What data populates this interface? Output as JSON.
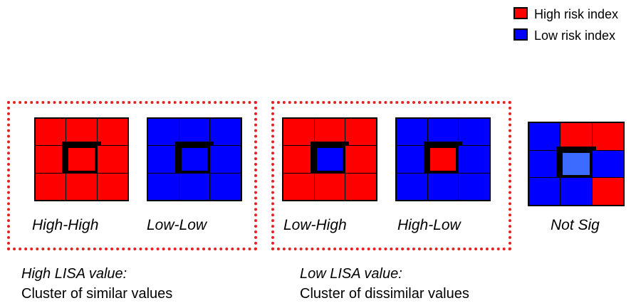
{
  "legend": {
    "items": [
      {
        "label": "High risk index",
        "color": "#ff0000"
      },
      {
        "label": "Low risk index",
        "color": "#0000ff"
      }
    ]
  },
  "patterns": [
    {
      "label": "High-High",
      "cells": [
        "red",
        "red",
        "red",
        "red",
        "red",
        "red",
        "red",
        "red",
        "red"
      ]
    },
    {
      "label": "Low-Low",
      "cells": [
        "blue",
        "blue",
        "blue",
        "blue",
        "blue",
        "blue",
        "blue",
        "blue",
        "blue"
      ]
    },
    {
      "label": "Low-High",
      "cells": [
        "red",
        "red",
        "red",
        "red",
        "blue",
        "red",
        "red",
        "red",
        "red"
      ]
    },
    {
      "label": "High-Low",
      "cells": [
        "blue",
        "blue",
        "blue",
        "blue",
        "red",
        "blue",
        "blue",
        "blue",
        "blue"
      ]
    },
    {
      "label": "Not Sig",
      "cells": [
        "blue",
        "red",
        "red",
        "blue",
        "lightblue",
        "blue",
        "blue",
        "blue",
        "red"
      ]
    }
  ],
  "captions": {
    "high": {
      "title": "High LISA value:",
      "body": "Cluster of similar values"
    },
    "low": {
      "title": "Low LISA value:",
      "body": "Cluster of dissimilar values"
    }
  },
  "colors": {
    "red": "#ff0000",
    "blue": "#0000ff",
    "lightblue": "#3b6bff",
    "group_border": "#e3231f"
  }
}
